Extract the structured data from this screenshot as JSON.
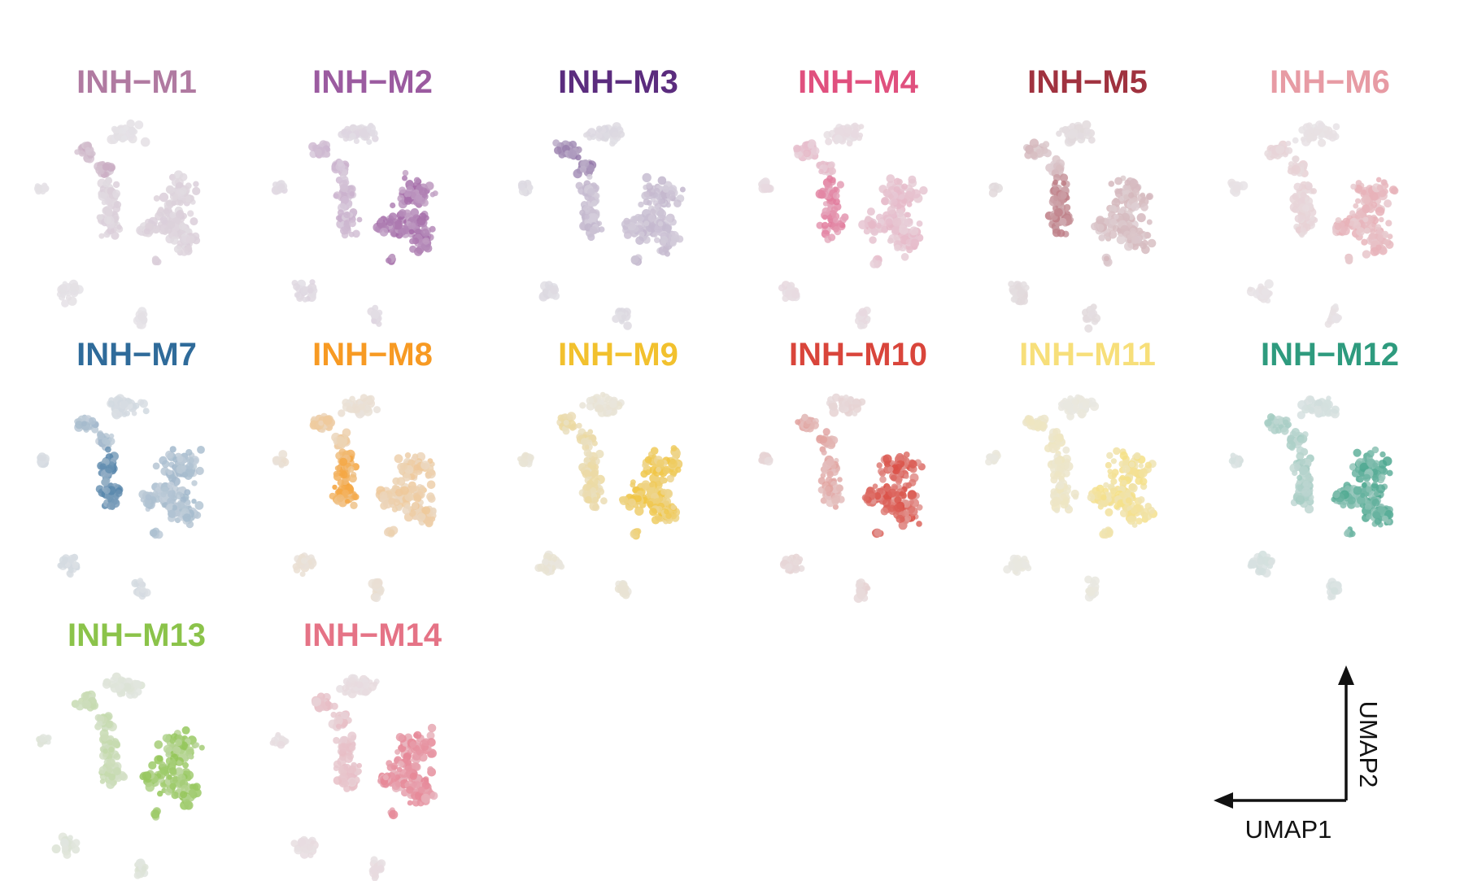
{
  "chart_data": {
    "type": "scatter",
    "kind": "umap-feature-plot-grid",
    "xlabel": "UMAP1",
    "ylabel": "UMAP2",
    "grid": false,
    "legend": "none",
    "background_color": "#e8e8ea",
    "panels": [
      {
        "title": "INH−M1",
        "color": "#b07aa1",
        "intensity": 0.45,
        "focus": "upper-left"
      },
      {
        "title": "INH−M2",
        "color": "#9b5ba0",
        "intensity": 0.75,
        "focus": "right"
      },
      {
        "title": "INH−M3",
        "color": "#5b2c7e",
        "intensity": 0.5,
        "focus": "upper-left"
      },
      {
        "title": "INH−M4",
        "color": "#e0507e",
        "intensity": 0.6,
        "focus": "middle-left"
      },
      {
        "title": "INH−M5",
        "color": "#a0323f",
        "intensity": 0.5,
        "focus": "middle-left"
      },
      {
        "title": "INH−M6",
        "color": "#e79ba4",
        "intensity": 0.6,
        "focus": "right"
      },
      {
        "title": "INH−M7",
        "color": "#2f6b9a",
        "intensity": 0.7,
        "focus": "middle-left"
      },
      {
        "title": "INH−M8",
        "color": "#f79a23",
        "intensity": 0.75,
        "focus": "middle-left"
      },
      {
        "title": "INH−M9",
        "color": "#f2c12e",
        "intensity": 0.75,
        "focus": "right"
      },
      {
        "title": "INH−M10",
        "color": "#d9453b",
        "intensity": 0.8,
        "focus": "right"
      },
      {
        "title": "INH−M11",
        "color": "#f7df7a",
        "intensity": 0.75,
        "focus": "right"
      },
      {
        "title": "INH−M12",
        "color": "#2e9b7e",
        "intensity": 0.7,
        "focus": "right"
      },
      {
        "title": "INH−M13",
        "color": "#8bc34a",
        "intensity": 0.75,
        "focus": "right"
      },
      {
        "title": "INH−M14",
        "color": "#e57386",
        "intensity": 0.7,
        "focus": "right"
      }
    ]
  }
}
